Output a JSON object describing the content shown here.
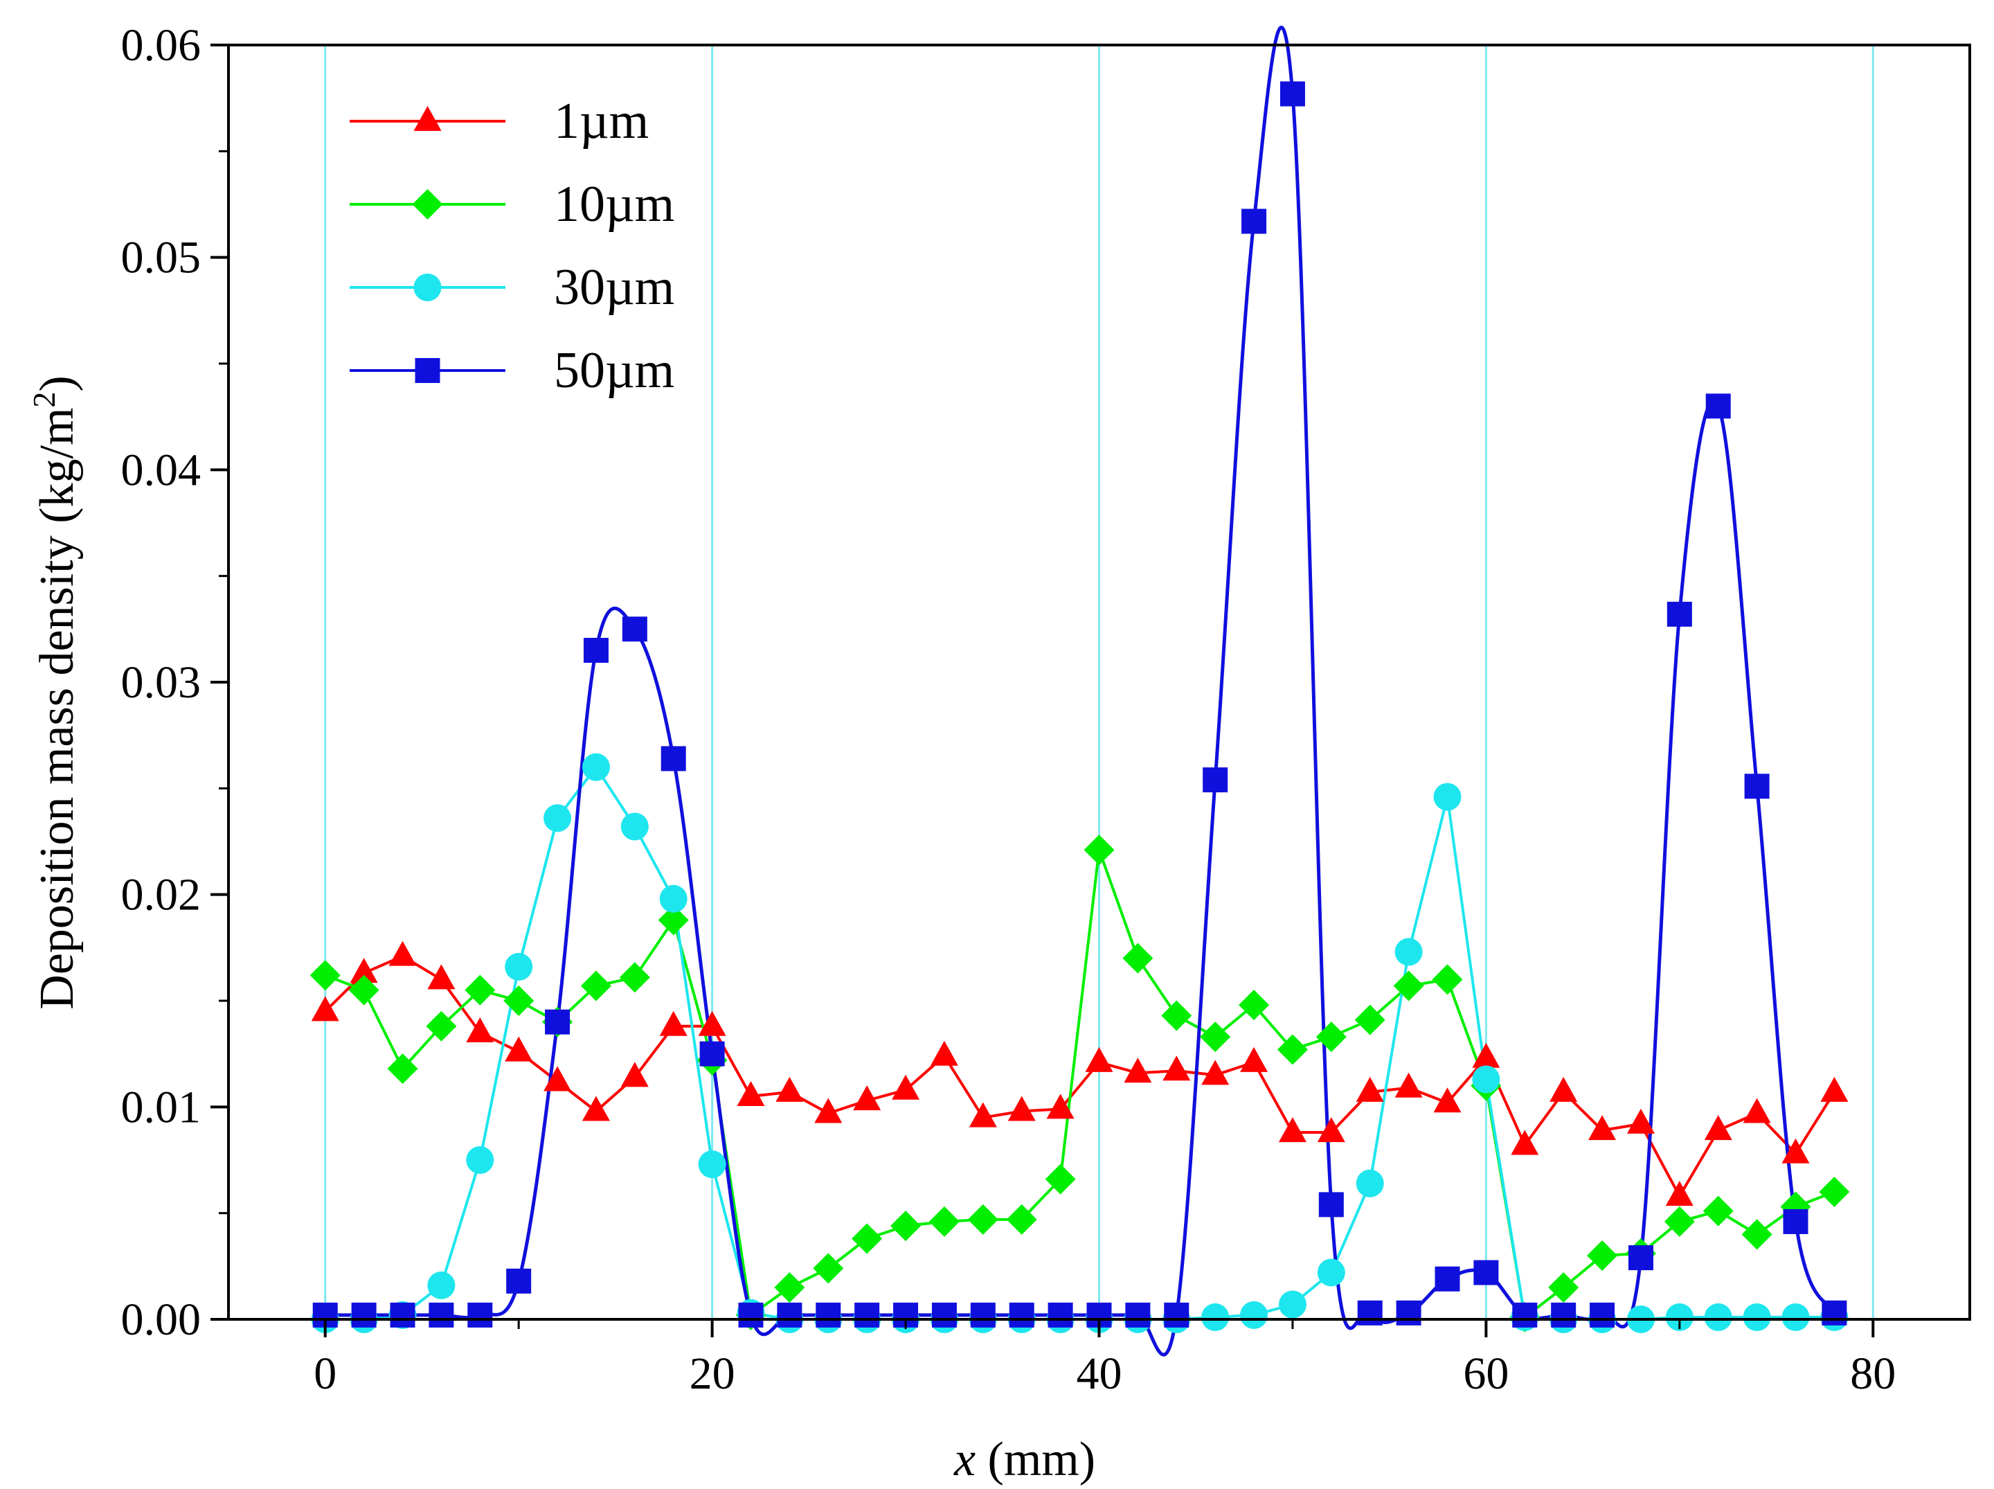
{
  "chart_data": {
    "type": "line",
    "title": "",
    "xlabel_var": "x",
    "xlabel_unit": " (mm)",
    "ylabel": "Deposition mass density (kg/m",
    "ylabel_sup": "2",
    "ylabel_close": ")",
    "xlim": [
      -5,
      85
    ],
    "ylim": [
      0,
      0.06
    ],
    "xticks": [
      0,
      20,
      40,
      60,
      80
    ],
    "xtick_labels": [
      "0",
      "20",
      "40",
      "60",
      "80"
    ],
    "yticks": [
      0,
      0.01,
      0.02,
      0.03,
      0.04,
      0.05,
      0.06
    ],
    "ytick_labels": [
      "0.00",
      "0.01",
      "0.02",
      "0.03",
      "0.04",
      "0.05",
      "0.06"
    ],
    "grid": "vertical lines at x ticks",
    "grid_color": "#7fe8f0",
    "legend_position": "top-left",
    "x": [
      0,
      2,
      4,
      6,
      8,
      10,
      12,
      14,
      16,
      18,
      20,
      22,
      24,
      26,
      28,
      30,
      32,
      34,
      36,
      38,
      40,
      42,
      44,
      46,
      48,
      50,
      52,
      54,
      56,
      58,
      60,
      62,
      64,
      66,
      68,
      70,
      72,
      74,
      76,
      78
    ],
    "series": [
      {
        "name": "1µm",
        "color": "#ff0000",
        "marker": "triangle",
        "values": [
          0.0145,
          0.0163,
          0.0171,
          0.016,
          0.0135,
          0.0126,
          0.0112,
          0.0098,
          0.0114,
          0.0138,
          0.0138,
          0.0105,
          0.0107,
          0.0097,
          0.0103,
          0.0108,
          0.0124,
          0.0095,
          0.0098,
          0.0099,
          0.0121,
          0.0116,
          0.0117,
          0.0115,
          0.0121,
          0.0088,
          0.0088,
          0.0107,
          0.0109,
          0.0102,
          0.0123,
          0.0082,
          0.0107,
          0.0089,
          0.0092,
          0.0058,
          0.0089,
          0.0097,
          0.0078,
          0.0107
        ]
      },
      {
        "name": "10µm",
        "color": "#00ee00",
        "marker": "diamond",
        "values": [
          0.0162,
          0.0155,
          0.0118,
          0.0138,
          0.0155,
          0.015,
          0.014,
          0.0157,
          0.0161,
          0.0188,
          0.0122,
          0.0002,
          0.0015,
          0.0024,
          0.0038,
          0.0044,
          0.0046,
          0.0047,
          0.0047,
          0.0066,
          0.0221,
          0.017,
          0.0143,
          0.0133,
          0.0148,
          0.0127,
          0.0133,
          0.0141,
          0.0157,
          0.016,
          0.011,
          0.0001,
          0.0015,
          0.003,
          0.0031,
          0.0046,
          0.0051,
          0.004,
          0.0053,
          0.006
        ]
      },
      {
        "name": "30µm",
        "color": "#1ee6ee",
        "marker": "circle",
        "values": [
          0.0,
          0.0,
          0.0002,
          0.0016,
          0.0075,
          0.0166,
          0.0236,
          0.026,
          0.0232,
          0.0198,
          0.0073,
          0.0003,
          0.0,
          0.0,
          0.0,
          0.0,
          0.0,
          0.0,
          0.0,
          0.0,
          0.0,
          0.0,
          0.0,
          0.0001,
          0.0002,
          0.0007,
          0.0022,
          0.0064,
          0.0173,
          0.0246,
          0.0113,
          0.0001,
          0.0,
          0.0,
          0.0,
          0.0001,
          0.0001,
          0.0001,
          0.0001,
          0.0001
        ]
      },
      {
        "name": "50µm",
        "color": "#1010dd",
        "marker": "square",
        "values": [
          0.0002,
          0.0002,
          0.0002,
          0.0002,
          0.0002,
          0.0018,
          0.014,
          0.0315,
          0.0325,
          0.0264,
          0.0125,
          0.0002,
          0.0002,
          0.0002,
          0.0002,
          0.0002,
          0.0002,
          0.0002,
          0.0002,
          0.0002,
          0.0002,
          0.0002,
          0.0002,
          0.0254,
          0.0517,
          0.0577,
          0.0054,
          0.0003,
          0.0003,
          0.0019,
          0.0022,
          0.0002,
          0.0002,
          0.0002,
          0.0029,
          0.0332,
          0.043,
          0.0251,
          0.0046,
          0.0003
        ]
      }
    ]
  }
}
